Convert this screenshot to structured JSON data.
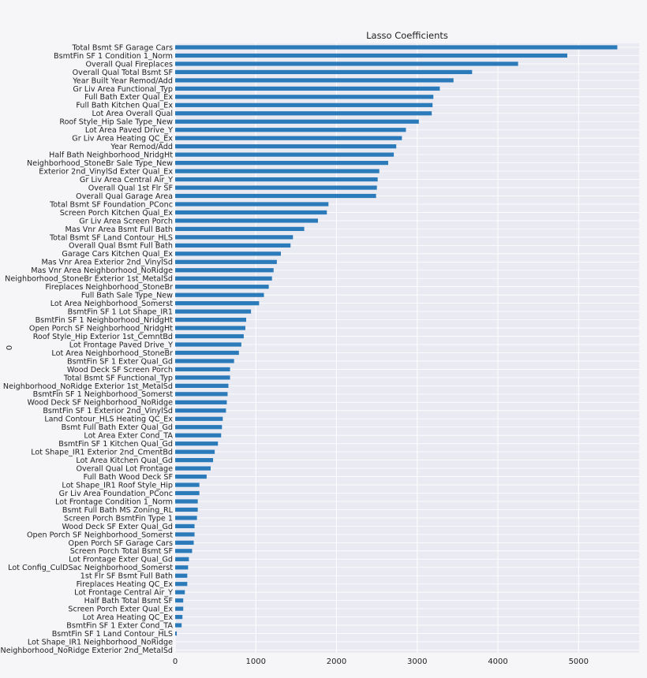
{
  "chart_data": {
    "type": "bar",
    "orientation": "horizontal",
    "title": "Lasso Coefficients",
    "ylabel": "0",
    "xlabel": "",
    "xlim": [
      0,
      5750
    ],
    "xticks": [
      0,
      1000,
      2000,
      3000,
      4000,
      5000
    ],
    "grid": true,
    "bar_color": "#2b7bba",
    "plot_background": "#eaeaf2",
    "categories": [
      "Total Bsmt SF Garage Cars",
      "BsmtFin SF 1 Condition 1_Norm",
      "Overall Qual Fireplaces",
      "Overall Qual Total Bsmt SF",
      "Year Built Year Remod/Add",
      "Gr Liv Area Functional_Typ",
      "Full Bath Exter Qual_Ex",
      "Full Bath Kitchen Qual_Ex",
      "Lot Area Overall Qual",
      "Roof Style_Hip Sale Type_New",
      "Lot Area Paved Drive_Y",
      "Gr Liv Area Heating QC_Ex",
      "Year Remod/Add",
      "Half Bath Neighborhood_NridgHt",
      "Neighborhood_StoneBr Sale Type_New",
      "Exterior 2nd_VinylSd Exter Qual_Ex",
      "Gr Liv Area Central Air_Y",
      "Overall Qual 1st Flr SF",
      "Overall Qual Garage Area",
      "Total Bsmt SF Foundation_PConc",
      "Screen Porch Kitchen Qual_Ex",
      "Gr Liv Area Screen Porch",
      "Mas Vnr Area Bsmt Full Bath",
      "Total Bsmt SF Land Contour_HLS",
      "Overall Qual Bsmt Full Bath",
      "Garage Cars Kitchen Qual_Ex",
      "Mas Vnr Area Exterior 2nd_VinylSd",
      "Mas Vnr Area Neighborhood_NoRidge",
      "Neighborhood_StoneBr Exterior 1st_MetalSd",
      "Fireplaces Neighborhood_StoneBr",
      "Full Bath Sale Type_New",
      "Lot Area Neighborhood_Somerst",
      "BsmtFin SF 1 Lot Shape_IR1",
      "BsmtFin SF 1 Neighborhood_NridgHt",
      "Open Porch SF Neighborhood_NridgHt",
      "Roof Style_Hip Exterior 1st_CemntBd",
      "Lot Frontage Paved Drive_Y",
      "Lot Area Neighborhood_StoneBr",
      "BsmtFin SF 1 Exter Qual_Gd",
      "Wood Deck SF Screen Porch",
      "Total Bsmt SF Functional_Typ",
      "Neighborhood_NoRidge Exterior 1st_MetalSd",
      "BsmtFin SF 1 Neighborhood_Somerst",
      "Wood Deck SF Neighborhood_NoRidge",
      "BsmtFin SF 1 Exterior 2nd_VinylSd",
      "Land Contour_HLS Heating QC_Ex",
      "Bsmt Full Bath Exter Qual_Gd",
      "Lot Area Exter Cond_TA",
      "BsmtFin SF 1 Kitchen Qual_Gd",
      "Lot Shape_IR1 Exterior 2nd_CmentBd",
      "Lot Area Kitchen Qual_Gd",
      "Overall Qual Lot Frontage",
      "Full Bath Wood Deck SF",
      "Lot Shape_IR1 Roof Style_Hip",
      "Gr Liv Area Foundation_PConc",
      "Lot Frontage Condition 1_Norm",
      "Bsmt Full Bath MS Zoning_RL",
      "Screen Porch BsmtFin Type 1",
      "Wood Deck SF Exter Qual_Gd",
      "Open Porch SF Neighborhood_Somerst",
      "Open Porch SF Garage Cars",
      "Screen Porch Total Bsmt SF",
      "Lot Frontage Exter Qual_Gd",
      "Lot Config_CulDSac Neighborhood_Somerst",
      "1st Flr SF Bsmt Full Bath",
      "Fireplaces Heating QC_Ex",
      "Lot Frontage Central Air_Y",
      "Half Bath Total Bsmt SF",
      "Screen Porch Exter Qual_Ex",
      "Lot Area Heating QC_Ex",
      "BsmtFin SF 1 Exter Cond_TA",
      "BsmtFin SF 1 Land Contour_HLS",
      "Lot Shape_IR1 Neighborhood_NoRidge",
      "Neighborhood_NoRidge Exterior 2nd_MetalSd"
    ],
    "values": [
      5480,
      4860,
      4250,
      3680,
      3450,
      3280,
      3200,
      3190,
      3180,
      3020,
      2860,
      2810,
      2740,
      2710,
      2640,
      2530,
      2510,
      2500,
      2490,
      1900,
      1880,
      1770,
      1600,
      1460,
      1430,
      1310,
      1260,
      1220,
      1200,
      1160,
      1100,
      1040,
      940,
      880,
      870,
      850,
      820,
      790,
      730,
      680,
      680,
      660,
      650,
      640,
      630,
      590,
      580,
      570,
      530,
      490,
      470,
      440,
      390,
      300,
      300,
      280,
      280,
      270,
      240,
      240,
      230,
      210,
      170,
      160,
      150,
      150,
      120,
      100,
      100,
      90,
      80,
      20,
      0,
      0
    ]
  }
}
